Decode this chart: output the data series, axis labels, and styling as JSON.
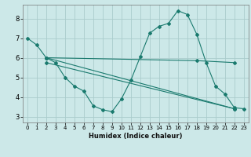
{
  "bg_color": "#cce8e8",
  "grid_color": "#aacccc",
  "line_color": "#1a7a6e",
  "marker_color": "#1a7a6e",
  "xlabel": "Humidex (Indice chaleur)",
  "xlim": [
    -0.5,
    23.5
  ],
  "ylim": [
    2.7,
    8.7
  ],
  "xticks": [
    0,
    1,
    2,
    3,
    4,
    5,
    6,
    7,
    8,
    9,
    10,
    11,
    12,
    13,
    14,
    15,
    16,
    17,
    18,
    19,
    20,
    21,
    22,
    23
  ],
  "yticks": [
    3,
    4,
    5,
    6,
    7,
    8
  ],
  "line1_x": [
    0,
    1,
    2,
    3,
    4,
    5,
    6,
    7,
    8,
    9,
    10,
    11,
    12,
    13,
    14,
    15,
    16,
    17,
    18,
    19,
    20,
    21,
    22,
    23
  ],
  "line1_y": [
    7.0,
    6.65,
    6.0,
    5.75,
    5.0,
    4.55,
    4.3,
    3.55,
    3.35,
    3.25,
    3.9,
    4.85,
    6.05,
    7.25,
    7.6,
    7.75,
    8.4,
    8.2,
    7.2,
    5.75,
    4.55,
    4.15,
    3.45,
    3.4
  ],
  "line2_x": [
    2,
    18,
    22
  ],
  "line2_y": [
    6.0,
    5.85,
    5.75
  ],
  "line3_x": [
    2,
    22
  ],
  "line3_y": [
    6.0,
    3.4
  ],
  "line4_x": [
    2,
    22
  ],
  "line4_y": [
    5.75,
    3.4
  ]
}
